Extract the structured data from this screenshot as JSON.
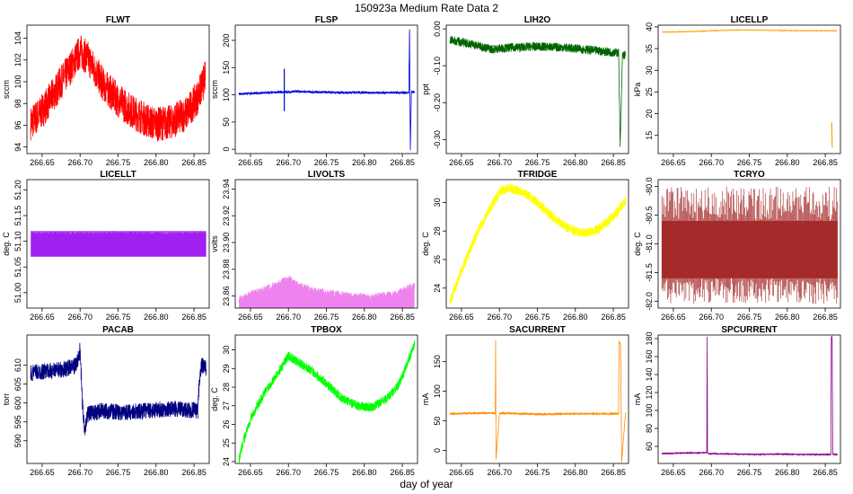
{
  "figure": {
    "title": "150923a   Medium Rate Data 2",
    "xlabel": "day of year"
  },
  "chart_data": [
    {
      "type": "line",
      "title": "FLWT",
      "ylabel": "sccm",
      "color": "#ff0000",
      "xlim": [
        266.63,
        266.87
      ],
      "ylim": [
        93.4,
        105.2
      ],
      "xticks": [
        266.65,
        266.7,
        266.75,
        266.8,
        266.85
      ],
      "xtick_labels": [
        "266.65",
        "266.70",
        "266.75",
        "266.80",
        "266.85"
      ],
      "yticks": [
        94,
        96,
        98,
        100,
        102,
        104
      ],
      "ytick_labels": [
        "94",
        "96",
        "98",
        "100",
        "102",
        "104"
      ],
      "series": [
        {
          "name": "FLWT",
          "x": [
            266.635,
            266.65,
            266.67,
            266.69,
            266.7,
            266.71,
            266.73,
            266.75,
            266.77,
            266.79,
            266.8,
            266.82,
            266.84,
            266.855,
            266.865
          ],
          "y": [
            96.2,
            97.3,
            99.4,
            101.6,
            102.8,
            102.2,
            99.8,
            98.3,
            97.2,
            96.4,
            96.1,
            96.3,
            97.1,
            98.6,
            100.4
          ],
          "noise": 1.6
        }
      ]
    },
    {
      "type": "line",
      "title": "FLSP",
      "ylabel": "sccm",
      "color": "#0000dd",
      "xlim": [
        266.63,
        266.87
      ],
      "ylim": [
        -8,
        228
      ],
      "xticks": [
        266.65,
        266.7,
        266.75,
        266.8,
        266.85
      ],
      "xtick_labels": [
        "266.65",
        "266.70",
        "266.75",
        "266.80",
        "266.85"
      ],
      "yticks": [
        0,
        50,
        100,
        150,
        200
      ],
      "ytick_labels": [
        "0",
        "50",
        "100",
        "150",
        "200"
      ],
      "series": [
        {
          "name": "FLSP",
          "x": [
            266.635,
            266.66,
            266.69,
            266.7,
            266.71,
            266.74,
            266.78,
            266.82,
            266.855,
            266.8585,
            266.8595,
            266.8605,
            266.862,
            266.866
          ],
          "y": [
            102,
            103,
            105,
            105,
            106,
            105,
            104,
            104,
            104,
            104,
            220,
            -2,
            105,
            105
          ],
          "noise": 2
        },
        {
          "name": "FLSP spike",
          "x": [
            266.6945,
            266.6945
          ],
          "y": [
            70,
            148
          ],
          "noise": 0
        }
      ]
    },
    {
      "type": "line",
      "title": "LIH2O",
      "ylabel": "ppt",
      "color": "#006400",
      "xlim": [
        266.63,
        266.87
      ],
      "ylim": [
        -0.338,
        0.01
      ],
      "xticks": [
        266.65,
        266.7,
        266.75,
        266.8,
        266.85
      ],
      "xtick_labels": [
        "266.65",
        "266.70",
        "266.75",
        "266.80",
        "266.85"
      ],
      "yticks": [
        0.0,
        -0.1,
        -0.2,
        -0.3
      ],
      "ytick_labels": [
        "0.00",
        "-0.10",
        "-0.20",
        "-0.30"
      ],
      "series": [
        {
          "name": "LIH2O",
          "x": [
            266.635,
            266.66,
            266.69,
            266.72,
            266.75,
            266.78,
            266.81,
            266.84,
            266.857,
            266.859,
            266.8605,
            266.862,
            266.866
          ],
          "y": [
            -0.03,
            -0.04,
            -0.055,
            -0.05,
            -0.048,
            -0.05,
            -0.055,
            -0.062,
            -0.065,
            -0.32,
            -0.2,
            -0.07,
            -0.072
          ],
          "noise": 0.012
        }
      ]
    },
    {
      "type": "line",
      "title": "LICELLP",
      "ylabel": "kPa",
      "color": "#ffa500",
      "xlim": [
        266.63,
        266.87
      ],
      "ylim": [
        10.8,
        40.4
      ],
      "xticks": [
        266.65,
        266.7,
        266.75,
        266.8,
        266.85
      ],
      "xtick_labels": [
        "266.65",
        "266.70",
        "266.75",
        "266.80",
        "266.85"
      ],
      "yticks": [
        15,
        20,
        25,
        30,
        35,
        40
      ],
      "ytick_labels": [
        "15",
        "20",
        "25",
        "30",
        "35",
        "40"
      ],
      "series": [
        {
          "name": "LICELLP",
          "x": [
            266.635,
            266.67,
            266.7,
            266.74,
            266.78,
            266.82,
            266.866
          ],
          "y": [
            38.8,
            38.9,
            39.1,
            39.3,
            39.2,
            39.1,
            39.1
          ],
          "noise": 0.05
        },
        {
          "name": "LICELLP drop",
          "x": [
            266.8585,
            266.859,
            266.8595
          ],
          "y": [
            18,
            13,
            12.2
          ],
          "noise": 0
        }
      ]
    },
    {
      "type": "line",
      "title": "LICELLT",
      "ylabel": "deg. C",
      "color": "#a020f0",
      "xlim": [
        266.63,
        266.87
      ],
      "ylim": [
        50.97,
        51.22
      ],
      "xticks": [
        266.65,
        266.7,
        266.75,
        266.8,
        266.85
      ],
      "xtick_labels": [
        "266.65",
        "266.70",
        "266.75",
        "266.80",
        "266.85"
      ],
      "yticks": [
        51.0,
        51.05,
        51.1,
        51.15,
        51.2
      ],
      "ytick_labels": [
        "51.00",
        "51.05",
        "51.10",
        "51.15",
        "51.20"
      ],
      "series": [
        {
          "name": "LICELLT",
          "band": [
            51.07,
            51.12
          ],
          "x": [
            266.635,
            266.866
          ]
        }
      ]
    },
    {
      "type": "line",
      "title": "LIVOLTS",
      "ylabel": "volts",
      "color": "#ee82ee",
      "xlim": [
        266.63,
        266.87
      ],
      "ylim": [
        23.851,
        23.947
      ],
      "xticks": [
        266.65,
        266.7,
        266.75,
        266.8,
        266.85
      ],
      "xtick_labels": [
        "266.65",
        "266.70",
        "266.75",
        "266.80",
        "266.85"
      ],
      "yticks": [
        23.86,
        23.88,
        23.9,
        23.92,
        23.94
      ],
      "ytick_labels": [
        "23.86",
        "23.88",
        "23.90",
        "23.92",
        "23.94"
      ],
      "series": [
        {
          "name": "LIVOLTS",
          "fill": true,
          "x": [
            266.635,
            266.65,
            266.67,
            266.69,
            266.7,
            266.71,
            266.73,
            266.75,
            266.78,
            266.81,
            266.84,
            266.855,
            266.866
          ],
          "y": [
            23.856,
            23.86,
            23.864,
            23.869,
            23.872,
            23.868,
            23.863,
            23.861,
            23.859,
            23.858,
            23.86,
            23.864,
            23.866
          ],
          "noise": 0.004
        }
      ]
    },
    {
      "type": "line",
      "title": "TFRIDGE",
      "ylabel": "deg. C",
      "color": "#ffff00",
      "xlim": [
        266.63,
        266.87
      ],
      "ylim": [
        22.6,
        31.6
      ],
      "xticks": [
        266.65,
        266.7,
        266.75,
        266.8,
        266.85
      ],
      "xtick_labels": [
        "266.65",
        "266.70",
        "266.75",
        "266.80",
        "266.85"
      ],
      "yticks": [
        24,
        26,
        28,
        30
      ],
      "ytick_labels": [
        "24",
        "26",
        "28",
        "30"
      ],
      "series": [
        {
          "name": "TFRIDGE",
          "x": [
            266.635,
            266.65,
            266.67,
            266.69,
            266.7,
            266.71,
            266.73,
            266.75,
            266.77,
            266.79,
            266.81,
            266.83,
            266.85,
            266.866
          ],
          "y": [
            23.0,
            25.2,
            27.8,
            29.8,
            30.7,
            31.0,
            30.8,
            30.0,
            29.0,
            28.2,
            27.8,
            28.1,
            29.0,
            30.1
          ],
          "noise": 0.35
        }
      ]
    },
    {
      "type": "line",
      "title": "TCRYO",
      "ylabel": "deg. C",
      "color": "#a52a2a",
      "xlim": [
        266.63,
        266.87
      ],
      "ylim": [
        -82.12,
        -79.88
      ],
      "xticks": [
        266.65,
        266.7,
        266.75,
        266.8,
        266.85
      ],
      "xtick_labels": [
        "266.65",
        "266.70",
        "266.75",
        "266.80",
        "266.85"
      ],
      "yticks": [
        -80.0,
        -80.5,
        -81.0,
        -81.5,
        -82.0
      ],
      "ytick_labels": [
        "-80.0",
        "-80.5",
        "-81.0",
        "-81.5",
        "-82.0"
      ],
      "series": [
        {
          "name": "TCRYO",
          "band": [
            -81.6,
            -80.6
          ],
          "spikes": [
            -82.05,
            -80.0
          ],
          "x": [
            266.635,
            266.866
          ]
        }
      ]
    },
    {
      "type": "line",
      "title": "PACAB",
      "ylabel": "torr",
      "color": "#000080",
      "xlim": [
        266.63,
        266.87
      ],
      "ylim": [
        584,
        618
      ],
      "xticks": [
        266.65,
        266.7,
        266.75,
        266.8,
        266.85
      ],
      "xtick_labels": [
        "266.65",
        "266.70",
        "266.75",
        "266.80",
        "266.85"
      ],
      "yticks": [
        590,
        595,
        600,
        605,
        610
      ],
      "ytick_labels": [
        "590",
        "595",
        "600",
        "605",
        "610"
      ],
      "series": [
        {
          "name": "PACAB",
          "x": [
            266.635,
            266.66,
            266.68,
            266.695,
            266.7,
            266.703,
            266.706,
            266.71,
            266.73,
            266.76,
            266.79,
            266.82,
            266.855,
            266.857,
            266.86,
            266.866
          ],
          "y": [
            608,
            608.5,
            609,
            610,
            614,
            600,
            593,
            597,
            598,
            597.5,
            598,
            598.5,
            598,
            606,
            610,
            609
          ],
          "noise": 2.2
        }
      ]
    },
    {
      "type": "line",
      "title": "TPBOX",
      "ylabel": "deg. C",
      "color": "#00ff00",
      "xlim": [
        266.63,
        266.87
      ],
      "ylim": [
        23.9,
        30.8
      ],
      "xticks": [
        266.65,
        266.7,
        266.75,
        266.8,
        266.85
      ],
      "xtick_labels": [
        "266.65",
        "266.70",
        "266.75",
        "266.80",
        "266.85"
      ],
      "yticks": [
        24,
        25,
        26,
        27,
        28,
        29,
        30
      ],
      "ytick_labels": [
        "24",
        "25",
        "26",
        "27",
        "28",
        "29",
        "30"
      ],
      "series": [
        {
          "name": "TPBOX",
          "x": [
            266.635,
            266.64,
            266.65,
            266.67,
            266.69,
            266.7,
            266.71,
            266.73,
            266.75,
            266.77,
            266.79,
            266.81,
            266.83,
            266.845,
            266.855,
            266.866
          ],
          "y": [
            24.1,
            25.0,
            26.3,
            27.8,
            29.0,
            29.7,
            29.4,
            28.9,
            28.2,
            27.4,
            27.0,
            26.9,
            27.4,
            28.1,
            29.1,
            30.3
          ],
          "noise": 0.25
        }
      ]
    },
    {
      "type": "line",
      "title": "SACURRENT",
      "ylabel": "mA",
      "color": "#ff8c00",
      "xlim": [
        266.63,
        266.87
      ],
      "ylim": [
        -22,
        195
      ],
      "xticks": [
        266.65,
        266.7,
        266.75,
        266.8,
        266.85
      ],
      "xtick_labels": [
        "266.65",
        "266.70",
        "266.75",
        "266.80",
        "266.85"
      ],
      "yticks": [
        0,
        50,
        100,
        150
      ],
      "ytick_labels": [
        "0",
        "50",
        "100",
        "150"
      ],
      "series": [
        {
          "name": "SACURRENT",
          "x": [
            266.635,
            266.66,
            266.69,
            266.6945,
            266.695,
            266.6955,
            266.7,
            266.73,
            266.76,
            266.79,
            266.82,
            266.855,
            266.857,
            266.8575,
            266.8595,
            266.861,
            266.866
          ],
          "y": [
            62,
            63,
            63,
            63,
            186,
            -15,
            63,
            62,
            61,
            62,
            62,
            62,
            62,
            184,
            180,
            -20,
            63
          ],
          "noise": 1.5
        }
      ]
    },
    {
      "type": "line",
      "title": "SPCURRENT",
      "ylabel": "mA",
      "color": "#8b008b",
      "xlim": [
        266.63,
        266.87
      ],
      "ylim": [
        41,
        184
      ],
      "xticks": [
        266.65,
        266.7,
        266.75,
        266.8,
        266.85
      ],
      "xtick_labels": [
        "266.65",
        "266.70",
        "266.75",
        "266.80",
        "266.85"
      ],
      "yticks": [
        60,
        80,
        100,
        120,
        140,
        160,
        180
      ],
      "ytick_labels": [
        "60",
        "80",
        "100",
        "120",
        "140",
        "160",
        "180"
      ],
      "series": [
        {
          "name": "SPCURRENT",
          "x": [
            266.635,
            266.66,
            266.69,
            266.694,
            266.6945,
            266.695,
            266.7,
            266.73,
            266.76,
            266.79,
            266.82,
            266.855,
            266.8575,
            266.858,
            266.859,
            266.86,
            266.866
          ],
          "y": [
            52,
            52.5,
            53,
            53,
            182,
            52,
            52,
            51.5,
            51,
            51.5,
            51,
            51,
            51,
            182,
            182,
            51,
            51
          ],
          "noise": 0.5
        }
      ]
    }
  ]
}
